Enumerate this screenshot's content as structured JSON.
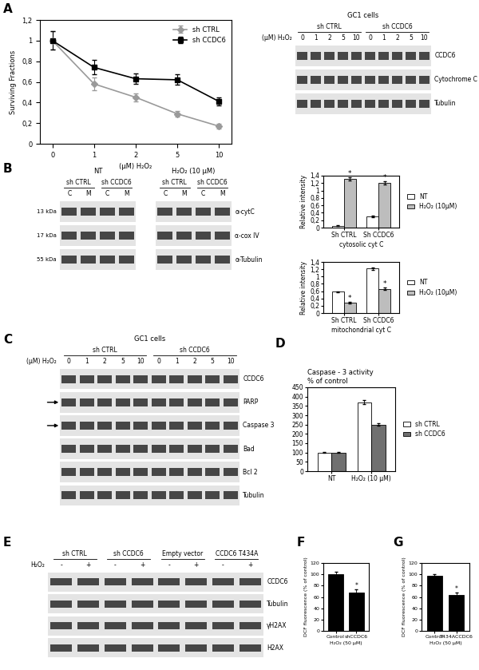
{
  "panel_letters": [
    "A",
    "B",
    "C",
    "D",
    "E",
    "F",
    "G"
  ],
  "chart_data": [
    {
      "type": "line",
      "categories": [
        "0",
        "1",
        "2",
        "5",
        "10"
      ],
      "xlabel": "(μM) H₂O₂",
      "ylabel": "Surviving Fractions",
      "ylim": [
        0,
        1.2
      ],
      "yticks": [
        0,
        {
          "value": 0.2,
          "label": "0,2"
        },
        {
          "value": 0.4,
          "label": "0,4"
        },
        {
          "value": 0.6,
          "label": "0,6"
        },
        {
          "value": 0.8,
          "label": "0,8"
        },
        1,
        {
          "value": 1.2,
          "label": "1,2"
        }
      ],
      "legend": "upper right",
      "series": [
        {
          "name": "sh CTRL",
          "color": "#9a9a9a",
          "marker": "diamond",
          "values": [
            1,
            0.58,
            0.45,
            0.29,
            0.17
          ],
          "errors": [
            0.09,
            0.06,
            0.04,
            0.03,
            0.02
          ]
        },
        {
          "name": "sh CCDC6",
          "color": "#000000",
          "marker": "square",
          "values": [
            1,
            0.74,
            0.63,
            0.62,
            0.41
          ],
          "errors": [
            0.09,
            0.07,
            0.05,
            0.05,
            0.04
          ]
        }
      ]
    },
    {
      "type": "bar",
      "categories": [
        "Sh CTRL",
        "Sh CCDC6"
      ],
      "xlabel": "cytosolic cyt C",
      "ylabel": "Relative intensity",
      "ylim": [
        0,
        1.4
      ],
      "yticks": [
        0,
        {
          "value": 0.2,
          "label": "0,2"
        },
        {
          "value": 0.4,
          "label": "0,4"
        },
        {
          "value": 0.6,
          "label": "0,6"
        },
        {
          "value": 0.8,
          "label": "0,8"
        },
        1,
        {
          "value": 1.2,
          "label": "1,2"
        },
        {
          "value": 1.4,
          "label": "1,4"
        }
      ],
      "legend": "right",
      "series": [
        {
          "name": "NT",
          "color": "#ffffff",
          "values": [
            0.05,
            0.3
          ],
          "errors": [
            0.01,
            0.02
          ]
        },
        {
          "name": "H₂O₂ (10μM)",
          "color": "#bdbdbd",
          "values": [
            1.32,
            1.2
          ],
          "errors": [
            0.04,
            0.04
          ]
        }
      ],
      "annotations": [
        {
          "text": "*",
          "category": "Sh CTRL",
          "series": "H₂O₂ (10μM)"
        },
        {
          "text": "*",
          "category": "Sh CCDC6",
          "series": "H₂O₂ (10μM)"
        }
      ]
    },
    {
      "type": "bar",
      "categories": [
        "Sh CTRL",
        "Sh CCDC6"
      ],
      "xlabel": "mitochondrial cyt C",
      "ylabel": "Relative intensity",
      "ylim": [
        0,
        1.4
      ],
      "yticks": [
        0,
        {
          "value": 0.2,
          "label": "0,2"
        },
        {
          "value": 0.4,
          "label": "0,4"
        },
        {
          "value": 0.6,
          "label": "0,6"
        },
        {
          "value": 0.8,
          "label": "0,8"
        },
        1,
        {
          "value": 1.2,
          "label": "1,2"
        },
        {
          "value": 1.4,
          "label": "1,4"
        }
      ],
      "legend": "right",
      "series": [
        {
          "name": "NT",
          "color": "#ffffff",
          "values": [
            0.58,
            1.22
          ],
          "errors": [
            0.02,
            0.03
          ]
        },
        {
          "name": "H₂O₂ (10μM)",
          "color": "#bdbdbd",
          "values": [
            0.28,
            0.66
          ],
          "errors": [
            0.02,
            0.03
          ]
        }
      ],
      "annotations": [
        {
          "text": "*",
          "category": "Sh CTRL",
          "series": "H₂O₂ (10μM)"
        },
        {
          "text": "*",
          "category": "Sh CCDC6",
          "series": "H₂O₂ (10μM)"
        }
      ]
    },
    {
      "type": "bar",
      "title": "Caspase - 3 activity",
      "subtitle": "% of control",
      "categories": [
        "NT",
        "H₂O₂ (10 μM)"
      ],
      "ylim": [
        0,
        450
      ],
      "yticks": [
        0,
        50,
        100,
        150,
        200,
        250,
        300,
        350,
        400,
        450
      ],
      "legend": "right",
      "series": [
        {
          "name": "sh CTRL",
          "color": "#ffffff",
          "values": [
            100,
            370
          ],
          "errors": [
            3,
            12
          ]
        },
        {
          "name": "sh CCDC6",
          "color": "#707070",
          "values": [
            100,
            250
          ],
          "errors": [
            3,
            6
          ]
        }
      ]
    },
    {
      "type": "bar",
      "categories": [
        "Control",
        "shCCDC6"
      ],
      "xlabel": "H₂O₂ (50 μM)",
      "ylabel": "DCF fluorescence (% of control)",
      "ylim": [
        0,
        120
      ],
      "yticks": [
        0,
        20,
        40,
        60,
        80,
        100,
        120
      ],
      "color": "#000000",
      "values": [
        100,
        68
      ],
      "errors": [
        4,
        6
      ],
      "annotations": [
        {
          "text": "*",
          "category": "shCCDC6"
        }
      ]
    },
    {
      "type": "bar",
      "categories": [
        "Control",
        "T434ACCDC6"
      ],
      "xlabel": "H₂O₂ (50 μM)",
      "ylabel": "DCF fluorescence (% of control)",
      "ylim": [
        0,
        120
      ],
      "yticks": [
        0,
        20,
        40,
        60,
        80,
        100,
        120
      ],
      "color": "#000000",
      "values": [
        97,
        63
      ],
      "errors": [
        3,
        5
      ],
      "annotations": [
        {
          "text": "*",
          "category": "T434ACCDC6"
        }
      ]
    }
  ],
  "blots": [
    {
      "header": "GC1 cells",
      "groups": [
        "sh CTRL",
        "sh CCDC6"
      ],
      "treatment": "(μM) H₂O₂",
      "lanes": [
        "0",
        "1",
        "2",
        "5",
        "10",
        "0",
        "1",
        "2",
        "5",
        "10"
      ],
      "rows": [
        "CCDC6",
        "Cytochrome C",
        "Tubulin"
      ]
    },
    {
      "headers": [
        "NT",
        "H₂O₂ (10 μM)"
      ],
      "groups": [
        "sh CTRL",
        "sh CCDC6"
      ],
      "lanes": [
        "C",
        "M",
        "C",
        "M"
      ],
      "rows": [
        "α-cytC",
        "α-cox IV",
        "α-Tubulin"
      ],
      "mw": [
        "13 kDa",
        "17 kDa",
        "55 kDa"
      ]
    },
    {
      "header": "GC1 cells",
      "groups": [
        "sh CTRL",
        "sh CCDC6"
      ],
      "treatment": "(μM) H₂O₂",
      "lanes": [
        "0",
        "1",
        "2",
        "5",
        "10",
        "0",
        "1",
        "2",
        "5",
        "10"
      ],
      "rows": [
        "CCDC6",
        "PARP",
        "Caspase 3",
        "Bad",
        "Bcl 2",
        "Tubulin"
      ],
      "arrows": [
        "PARP",
        "Caspase 3"
      ]
    },
    {
      "groups": [
        "sh CTRL",
        "sh CCDC6",
        "Empty vector",
        "CCDC6 T434A"
      ],
      "treatment": "H₂O₂",
      "lanes": [
        "-",
        "+",
        "-",
        "+",
        "-",
        "+",
        "-",
        "+"
      ],
      "rows": [
        "CCDC6",
        "Tubulin",
        "γH2AX",
        "H2AX"
      ]
    }
  ]
}
